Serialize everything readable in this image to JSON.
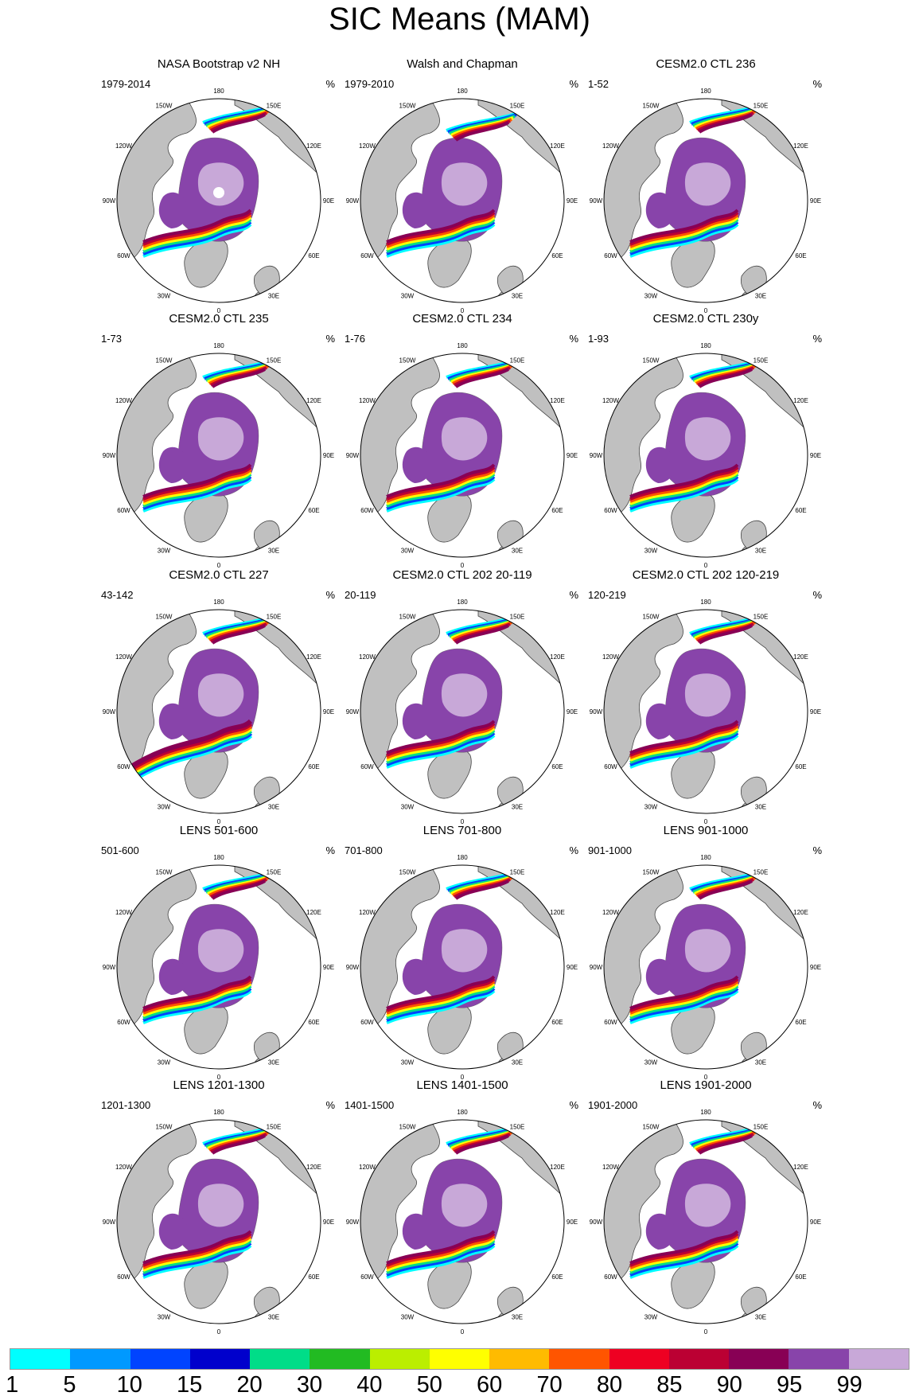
{
  "title": "SIC Means (MAM)",
  "unit": "%",
  "lon_labels": [
    "180",
    "150E",
    "120E",
    "90E",
    "60E",
    "30E",
    "0",
    "30W",
    "60W",
    "90W",
    "120W",
    "150W"
  ],
  "panels": [
    {
      "title": "NASA Bootstrap v2 NH",
      "period": "1979-2014",
      "style": "obs"
    },
    {
      "title": "Walsh and Chapman",
      "period": "1979-2010",
      "style": "obs2"
    },
    {
      "title": "CESM2.0 CTL 236",
      "period": "1-52",
      "style": "model"
    },
    {
      "title": "CESM2.0 CTL 235",
      "period": "1-73",
      "style": "model"
    },
    {
      "title": "CESM2.0 CTL 234",
      "period": "1-76",
      "style": "model"
    },
    {
      "title": "CESM2.0 CTL 230y",
      "period": "1-93",
      "style": "model"
    },
    {
      "title": "CESM2.0 CTL 227",
      "period": "43-142",
      "style": "model_ext"
    },
    {
      "title": "CESM2.0 CTL 202 20-119",
      "period": "20-119",
      "style": "model"
    },
    {
      "title": "CESM2.0 CTL 202 120-219",
      "period": "120-219",
      "style": "model"
    },
    {
      "title": "LENS 501-600",
      "period": "501-600",
      "style": "lens"
    },
    {
      "title": "LENS 701-800",
      "period": "701-800",
      "style": "lens"
    },
    {
      "title": "LENS 901-1000",
      "period": "901-1000",
      "style": "lens"
    },
    {
      "title": "LENS 1201-1300",
      "period": "1201-1300",
      "style": "lens"
    },
    {
      "title": "LENS 1401-1500",
      "period": "1401-1500",
      "style": "lens"
    },
    {
      "title": "LENS 1901-2000",
      "period": "1901-2000",
      "style": "lens"
    }
  ],
  "colorbar": {
    "labels": [
      "1",
      "5",
      "10",
      "15",
      "20",
      "30",
      "40",
      "50",
      "60",
      "70",
      "80",
      "85",
      "90",
      "95",
      "99"
    ],
    "colors": [
      "#00ffff",
      "#0099ff",
      "#0044ff",
      "#0000cc",
      "#00dd88",
      "#22bb22",
      "#bbee00",
      "#ffff00",
      "#ffbb00",
      "#ff5500",
      "#ee0022",
      "#bb0033",
      "#880055",
      "#8844aa",
      "#c8a8d8"
    ]
  }
}
